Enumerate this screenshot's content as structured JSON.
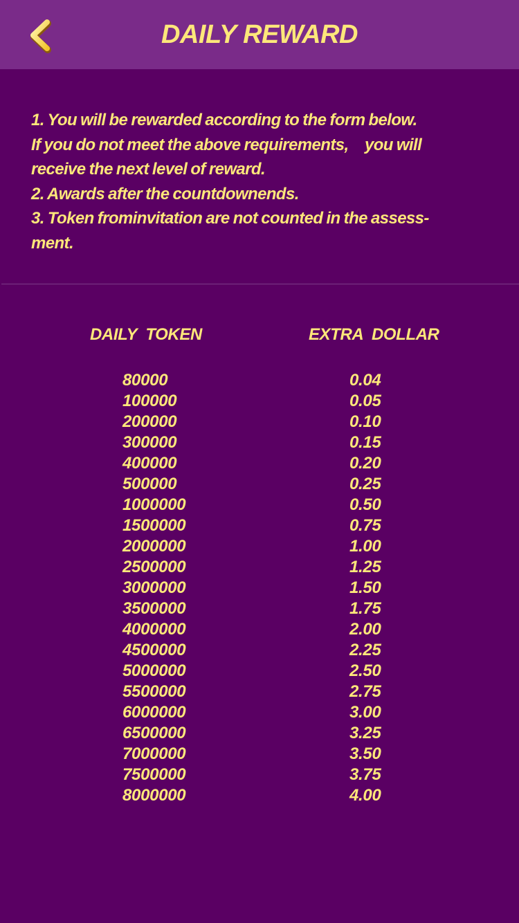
{
  "header": {
    "title": "DAILY REWARD",
    "back_icon": "chevron-left-icon"
  },
  "rules": [
    "1. You will be rewarded according to the form below.",
    "If you do not meet the above requirements,　you will",
    "receive the next level of reward.",
    "2. Awards after the countdownends.",
    "3. Token frominvitation are not counted in the assess-",
    "ment."
  ],
  "table": {
    "headers": {
      "token": "DAILY  TOKEN",
      "dollar": "EXTRA  DOLLAR"
    },
    "rows": [
      {
        "token": "80000",
        "dollar": "0.04"
      },
      {
        "token": "100000",
        "dollar": "0.05"
      },
      {
        "token": "200000",
        "dollar": "0.10"
      },
      {
        "token": "300000",
        "dollar": "0.15"
      },
      {
        "token": "400000",
        "dollar": "0.20"
      },
      {
        "token": "500000",
        "dollar": "0.25"
      },
      {
        "token": "1000000",
        "dollar": "0.50"
      },
      {
        "token": "1500000",
        "dollar": "0.75"
      },
      {
        "token": "2000000",
        "dollar": "1.00"
      },
      {
        "token": "2500000",
        "dollar": "1.25"
      },
      {
        "token": "3000000",
        "dollar": "1.50"
      },
      {
        "token": "3500000",
        "dollar": "1.75"
      },
      {
        "token": "4000000",
        "dollar": "2.00"
      },
      {
        "token": "4500000",
        "dollar": "2.25"
      },
      {
        "token": "5000000",
        "dollar": "2.50"
      },
      {
        "token": "5500000",
        "dollar": "2.75"
      },
      {
        "token": "6000000",
        "dollar": "3.00"
      },
      {
        "token": "6500000",
        "dollar": "3.25"
      },
      {
        "token": "7000000",
        "dollar": "3.50"
      },
      {
        "token": "7500000",
        "dollar": "3.75"
      },
      {
        "token": "8000000",
        "dollar": "4.00"
      }
    ]
  },
  "colors": {
    "background": "#5a0063",
    "header_background": "#7a2b89",
    "text": "#fde77a",
    "divider": "#7b3d86"
  }
}
